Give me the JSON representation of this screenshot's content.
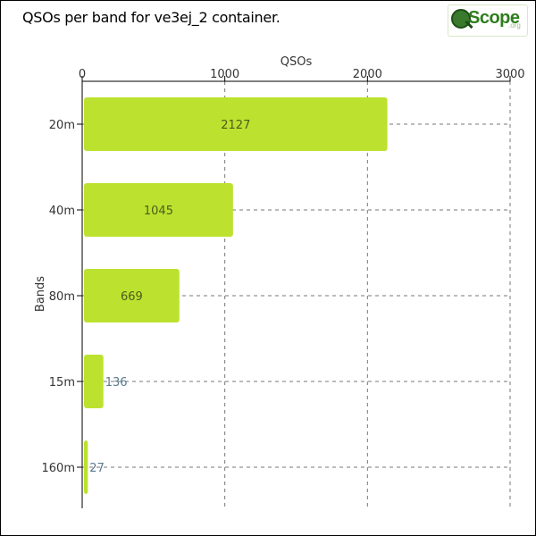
{
  "header": {
    "title": "QSOs per band for ve3ej_2 container.",
    "logo_text": "Scope",
    "logo_suffix": ".org"
  },
  "chart_data": {
    "type": "bar",
    "orientation": "horizontal",
    "categories": [
      "20m",
      "40m",
      "80m",
      "15m",
      "160m"
    ],
    "values": [
      2127,
      1045,
      669,
      136,
      27
    ],
    "title": "QSOs per band for ve3ej_2 container.",
    "xlabel": "QSOs",
    "ylabel": "Bands",
    "xlim": [
      0,
      3000
    ],
    "xticks": [
      0,
      1000,
      2000,
      3000
    ],
    "x_axis_position": "top",
    "grid": true,
    "data_labels": true,
    "colors": {
      "bar": "#bce22f",
      "label_inside": "#4f5a1c",
      "label_outside": "#5a7a8c",
      "grid": "#777777",
      "axis": "#000000"
    }
  }
}
